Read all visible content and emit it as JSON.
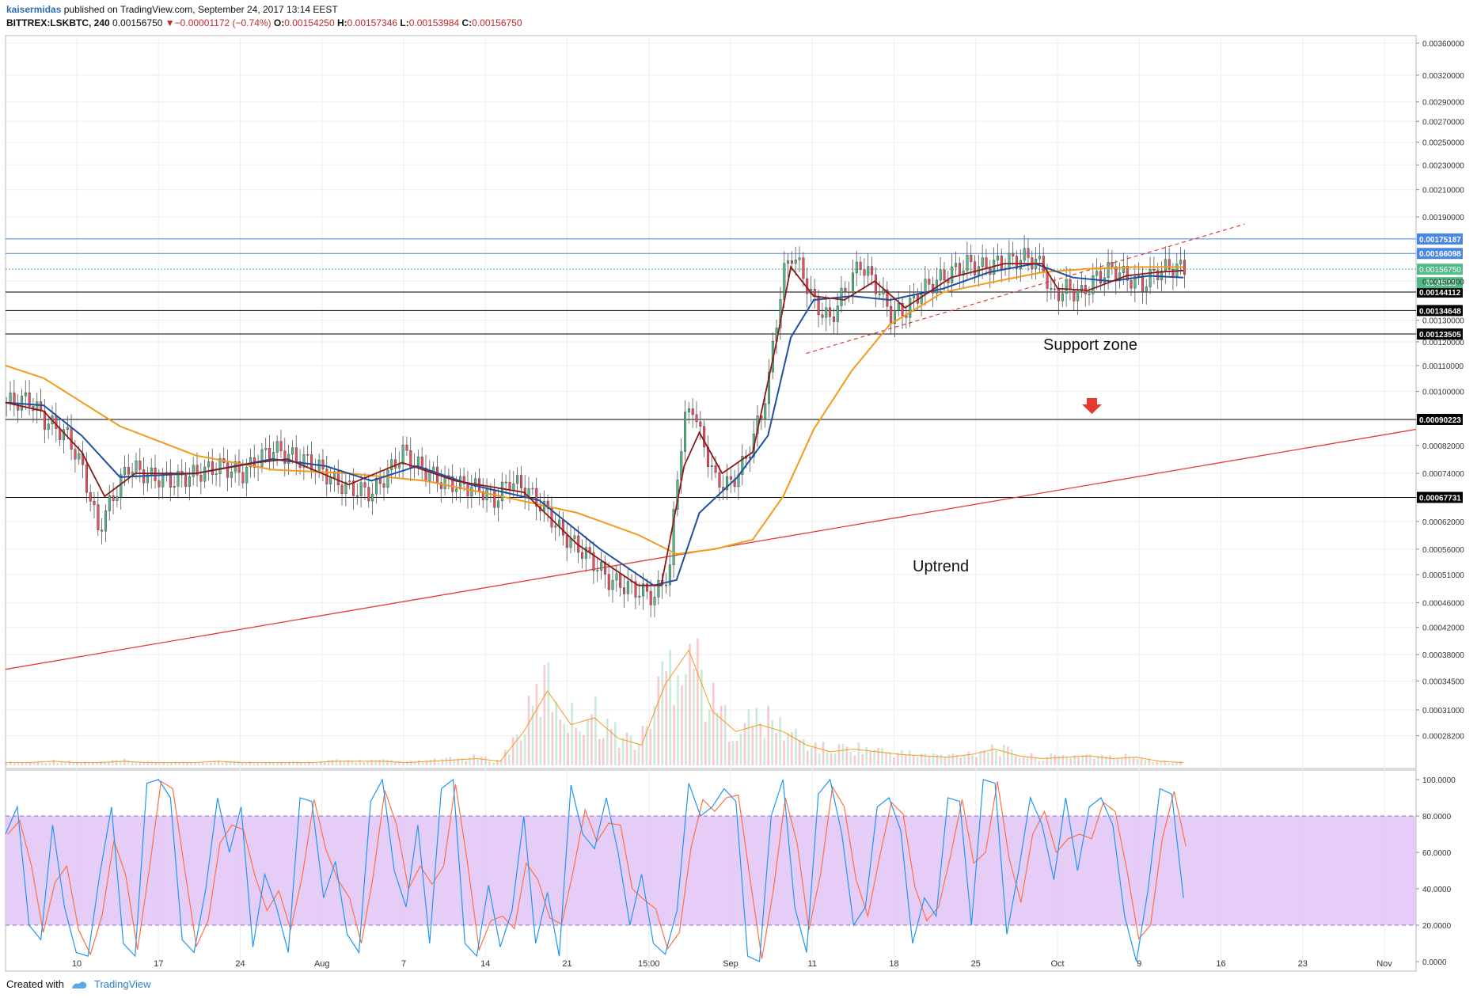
{
  "header": {
    "username": "kaisermidas",
    "published": "published on TradingView.com, September 24, 2017 13:14 EEST",
    "symbol": "BITTREX:LSKBTC, 240",
    "price": "0.00156750",
    "change_arrow": "▼",
    "change": "−0.00001172 (−0.74%)",
    "o_label": "O:",
    "o": "0.00154250",
    "h_label": "H:",
    "h": "0.00157346",
    "l_label": "L:",
    "l": "0.00153984",
    "c_label": "C:",
    "c": "0.00156750"
  },
  "footer": {
    "created_with": "Created with",
    "brand": "TradingView"
  },
  "colors": {
    "price_up": "#53b987",
    "price_down": "#eb4d5c",
    "ma_fast": "#8b1a1a",
    "ma_mid": "#1f4fa0",
    "ma_slow": "#f29a1e",
    "trend": "#e53935",
    "resistance": "#4a86e8",
    "support": "#000000",
    "stoch_k": "#2196f3",
    "stoch_d": "#ff7043",
    "stoch_band": "#e0c4f7",
    "arrow": "#e53935"
  },
  "chart_data": [
    {
      "type": "candlestick",
      "title": "",
      "ylim": [
        0.00025,
        0.0037
      ],
      "y_scale": "log",
      "grid": true,
      "x_ticks": [
        "10",
        "17",
        "24",
        "Aug",
        "7",
        "14",
        "21",
        "15:00",
        "Sep",
        "11",
        "18",
        "25",
        "Oct",
        "9",
        "16",
        "23",
        "Nov"
      ],
      "y_ticks": [
        "0.00360000",
        "0.00320000",
        "0.00290000",
        "0.00270000",
        "0.00250000",
        "0.00230000",
        "0.00210000",
        "0.00190000",
        "0.00150000",
        "0.00130000",
        "0.00120000",
        "0.00110000",
        "0.00100000",
        "0.00082000",
        "0.00074000",
        "0.00062000",
        "0.00056000",
        "0.00051000",
        "0.00046000",
        "0.00042000",
        "0.00038000",
        "0.00034500",
        "0.00031000",
        "0.00028200"
      ],
      "y_tick_values": [
        0.0036,
        0.0032,
        0.0029,
        0.0027,
        0.0025,
        0.0023,
        0.0021,
        0.0019,
        0.0015,
        0.0013,
        0.0012,
        0.0011,
        0.001,
        0.00082,
        0.00074,
        0.00062,
        0.00056,
        0.00051,
        0.00046,
        0.00042,
        0.00038,
        0.000345,
        0.00031,
        0.000282
      ],
      "price_path": [
        [
          0,
          0.00096
        ],
        [
          6,
          0.00097
        ],
        [
          10,
          0.0009
        ],
        [
          16,
          0.00085
        ],
        [
          20,
          0.00075
        ],
        [
          24,
          0.0006
        ],
        [
          28,
          0.00068
        ],
        [
          32,
          0.00076
        ],
        [
          38,
          0.00073
        ],
        [
          44,
          0.00072
        ],
        [
          50,
          0.00074
        ],
        [
          56,
          0.00076
        ],
        [
          62,
          0.00074
        ],
        [
          66,
          0.00078
        ],
        [
          70,
          0.00081
        ],
        [
          74,
          0.00079
        ],
        [
          80,
          0.00077
        ],
        [
          86,
          0.00072
        ],
        [
          90,
          0.0007
        ],
        [
          96,
          0.00069
        ],
        [
          100,
          0.00074
        ],
        [
          104,
          0.0008
        ],
        [
          108,
          0.00076
        ],
        [
          114,
          0.00072
        ],
        [
          118,
          0.00071
        ],
        [
          124,
          0.0007
        ],
        [
          128,
          0.00067
        ],
        [
          132,
          0.00072
        ],
        [
          136,
          0.0007
        ],
        [
          142,
          0.00064
        ],
        [
          146,
          0.00059
        ],
        [
          152,
          0.00055
        ],
        [
          158,
          0.0005
        ],
        [
          162,
          0.00049
        ],
        [
          166,
          0.00048
        ],
        [
          170,
          0.00047
        ],
        [
          174,
          0.00052
        ],
        [
          176,
          0.00074
        ],
        [
          178,
          0.0009
        ],
        [
          180,
          0.00095
        ],
        [
          182,
          0.00085
        ],
        [
          186,
          0.00072
        ],
        [
          190,
          0.00071
        ],
        [
          194,
          0.00078
        ],
        [
          198,
          0.00092
        ],
        [
          200,
          0.00105
        ],
        [
          202,
          0.0013
        ],
        [
          204,
          0.00155
        ],
        [
          206,
          0.00166
        ],
        [
          208,
          0.00158
        ],
        [
          212,
          0.00138
        ],
        [
          216,
          0.0013
        ],
        [
          220,
          0.00145
        ],
        [
          224,
          0.0016
        ],
        [
          228,
          0.00148
        ],
        [
          232,
          0.00133
        ],
        [
          236,
          0.00135
        ],
        [
          240,
          0.00145
        ],
        [
          244,
          0.0015
        ],
        [
          248,
          0.00155
        ],
        [
          252,
          0.0016
        ],
        [
          256,
          0.00158
        ],
        [
          260,
          0.0016
        ],
        [
          264,
          0.00162
        ],
        [
          268,
          0.00164
        ],
        [
          272,
          0.00158
        ],
        [
          274,
          0.00142
        ],
        [
          278,
          0.00146
        ],
        [
          282,
          0.00143
        ],
        [
          286,
          0.00152
        ],
        [
          290,
          0.00157
        ],
        [
          294,
          0.00152
        ],
        [
          298,
          0.00148
        ],
        [
          302,
          0.00156
        ],
        [
          306,
          0.00158
        ],
        [
          309,
          0.00157
        ]
      ],
      "ma_fast_path": [
        [
          0,
          0.00096
        ],
        [
          10,
          0.00093
        ],
        [
          20,
          0.0008
        ],
        [
          26,
          0.00068
        ],
        [
          34,
          0.00074
        ],
        [
          50,
          0.00074
        ],
        [
          66,
          0.00077
        ],
        [
          74,
          0.00078
        ],
        [
          90,
          0.00071
        ],
        [
          104,
          0.00077
        ],
        [
          118,
          0.00072
        ],
        [
          136,
          0.00069
        ],
        [
          150,
          0.00057
        ],
        [
          166,
          0.00049
        ],
        [
          172,
          0.00049
        ],
        [
          178,
          0.00076
        ],
        [
          182,
          0.00086
        ],
        [
          188,
          0.00074
        ],
        [
          196,
          0.0008
        ],
        [
          202,
          0.00118
        ],
        [
          206,
          0.00158
        ],
        [
          212,
          0.00142
        ],
        [
          220,
          0.0014
        ],
        [
          228,
          0.0015
        ],
        [
          236,
          0.00136
        ],
        [
          248,
          0.00152
        ],
        [
          262,
          0.0016
        ],
        [
          272,
          0.0016
        ],
        [
          276,
          0.00146
        ],
        [
          284,
          0.00145
        ],
        [
          294,
          0.00153
        ],
        [
          302,
          0.00155
        ],
        [
          309,
          0.00156
        ]
      ],
      "ma_mid_path": [
        [
          0,
          0.00096
        ],
        [
          10,
          0.00095
        ],
        [
          20,
          0.00085
        ],
        [
          30,
          0.00073
        ],
        [
          50,
          0.00074
        ],
        [
          70,
          0.00078
        ],
        [
          84,
          0.00076
        ],
        [
          96,
          0.00072
        ],
        [
          108,
          0.00076
        ],
        [
          122,
          0.00071
        ],
        [
          140,
          0.00067
        ],
        [
          156,
          0.00056
        ],
        [
          170,
          0.00049
        ],
        [
          176,
          0.0005
        ],
        [
          182,
          0.00064
        ],
        [
          192,
          0.00073
        ],
        [
          200,
          0.00085
        ],
        [
          206,
          0.00122
        ],
        [
          212,
          0.0014
        ],
        [
          222,
          0.00142
        ],
        [
          232,
          0.0014
        ],
        [
          246,
          0.00146
        ],
        [
          258,
          0.00155
        ],
        [
          270,
          0.0016
        ],
        [
          280,
          0.00152
        ],
        [
          290,
          0.0015
        ],
        [
          300,
          0.00153
        ],
        [
          309,
          0.00152
        ]
      ],
      "ma_slow_path": [
        [
          0,
          0.0011
        ],
        [
          10,
          0.00105
        ],
        [
          30,
          0.00088
        ],
        [
          50,
          0.00079
        ],
        [
          70,
          0.00075
        ],
        [
          90,
          0.00074
        ],
        [
          110,
          0.00072
        ],
        [
          130,
          0.00068
        ],
        [
          150,
          0.00064
        ],
        [
          166,
          0.00059
        ],
        [
          176,
          0.00055
        ],
        [
          186,
          0.00056
        ],
        [
          196,
          0.00058
        ],
        [
          204,
          0.00068
        ],
        [
          212,
          0.00087
        ],
        [
          222,
          0.00108
        ],
        [
          232,
          0.00128
        ],
        [
          246,
          0.00144
        ],
        [
          260,
          0.0015
        ],
        [
          272,
          0.00155
        ],
        [
          284,
          0.00157
        ],
        [
          296,
          0.00158
        ],
        [
          309,
          0.00158
        ]
      ],
      "volume_profile": [
        0.02,
        0.02,
        0.03,
        0.02,
        0.02,
        0.03,
        0.02,
        0.02,
        0.02,
        0.03,
        0.02,
        0.02,
        0.02,
        0.02,
        0.03,
        0.03,
        0.03,
        0.02,
        0.03,
        0.04,
        0.05,
        0.03,
        0.25,
        0.55,
        0.3,
        0.35,
        0.2,
        0.15,
        0.6,
        0.85,
        0.4,
        0.25,
        0.3,
        0.25,
        0.15,
        0.1,
        0.12,
        0.1,
        0.08,
        0.07,
        0.06,
        0.08,
        0.12,
        0.07,
        0.05,
        0.06,
        0.07,
        0.05,
        0.06,
        0.03,
        0.02
      ],
      "horizontal_levels": [
        {
          "label": "0.00175187",
          "value": 0.00175187,
          "kind": "resistance"
        },
        {
          "label": "0.00166098",
          "value": 0.00166098,
          "kind": "resistance"
        },
        {
          "label": "0.00144112",
          "value": 0.00144112,
          "kind": "support"
        },
        {
          "label": "0.00134648",
          "value": 0.00134648,
          "kind": "support"
        },
        {
          "label": "0.00123505",
          "value": 0.00123505,
          "kind": "support"
        },
        {
          "label": "0.00090223",
          "value": 0.00090223,
          "kind": "support"
        },
        {
          "label": "0.00067731",
          "value": 0.00067731,
          "kind": "support"
        }
      ],
      "last_price_label": "0.00156750",
      "countdown_label": "01:45:13",
      "hidden_tick_label": "0.00150000",
      "uptrend_line": [
        [
          0,
          0.00036
        ],
        [
          370,
          0.00087
        ]
      ],
      "dashed_trendline": [
        [
          210,
          0.00115
        ],
        [
          325,
          0.00185
        ]
      ],
      "annotations": [
        "Support zone",
        "Uptrend"
      ]
    },
    {
      "type": "line",
      "title": "",
      "ylim": [
        0,
        100
      ],
      "y_ticks": [
        "100.0000",
        "80.0000",
        "60.0000",
        "40.0000",
        "20.0000",
        "0.0000"
      ],
      "y_tick_values": [
        100,
        80,
        60,
        40,
        20,
        0
      ],
      "band": [
        20,
        80
      ],
      "series": [
        {
          "values": [
            70,
            85,
            20,
            12,
            75,
            30,
            5,
            3,
            48,
            85,
            10,
            3,
            98,
            100,
            90,
            12,
            5,
            40,
            90,
            60,
            85,
            8,
            48,
            30,
            5,
            90,
            88,
            35,
            55,
            15,
            5,
            88,
            100,
            50,
            30,
            75,
            10,
            95,
            100,
            10,
            3,
            42,
            8,
            28,
            80,
            10,
            38,
            3,
            97,
            70,
            62,
            90,
            60,
            20,
            48,
            10,
            4,
            28,
            98,
            80,
            85,
            95,
            88,
            3,
            0,
            80,
            100,
            30,
            5,
            92,
            100,
            70,
            20,
            30,
            85,
            90,
            72,
            10,
            35,
            25,
            90,
            88,
            20,
            100,
            98,
            15,
            50,
            90,
            75,
            45,
            90,
            50,
            85,
            90,
            75,
            25,
            0,
            40,
            95,
            92,
            35
          ]
        }
      ]
    }
  ]
}
